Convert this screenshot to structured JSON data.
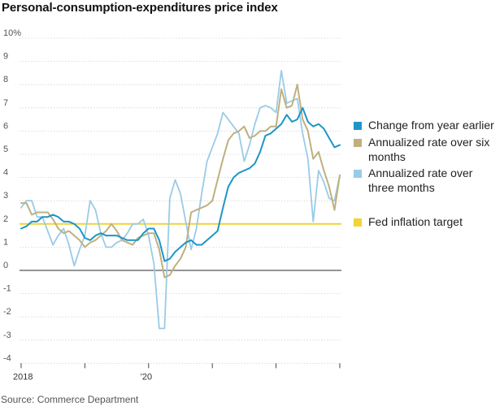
{
  "title": "Personal-consumption-expenditures price index",
  "source": "Source: Commerce Department",
  "chart_data": {
    "type": "line",
    "title": "Personal-consumption-expenditures price index",
    "xlabel": "",
    "ylabel": "",
    "ylim": [
      -4,
      10
    ],
    "xlim": [
      "2018-01",
      "2023-01"
    ],
    "y_ticks": [
      "10%",
      "9",
      "8",
      "7",
      "6",
      "5",
      "4",
      "3",
      "2",
      "1",
      "0",
      "-1",
      "-2",
      "-3",
      "-4"
    ],
    "y_tick_values": [
      10,
      9,
      8,
      7,
      6,
      5,
      4,
      3,
      2,
      1,
      0,
      -1,
      -2,
      -3,
      -4
    ],
    "x_tick_labels": [
      "2018",
      "'20"
    ],
    "x_tick_label_months": [
      "2018-01",
      "2020-01"
    ],
    "grid": true,
    "legend_position": "right",
    "reference_line": {
      "name": "Fed inflation target",
      "value": 2,
      "color": "#f2d338"
    },
    "series": [
      {
        "name": "Change from year earlier",
        "color": "#1e95c8",
        "x": [
          "2018-01",
          "2018-02",
          "2018-03",
          "2018-04",
          "2018-05",
          "2018-06",
          "2018-07",
          "2018-08",
          "2018-09",
          "2018-10",
          "2018-11",
          "2018-12",
          "2019-01",
          "2019-02",
          "2019-03",
          "2019-04",
          "2019-05",
          "2019-06",
          "2019-07",
          "2019-08",
          "2019-09",
          "2019-10",
          "2019-11",
          "2019-12",
          "2020-01",
          "2020-02",
          "2020-03",
          "2020-04",
          "2020-05",
          "2020-06",
          "2020-07",
          "2020-08",
          "2020-09",
          "2020-10",
          "2020-11",
          "2020-12",
          "2021-01",
          "2021-02",
          "2021-03",
          "2021-04",
          "2021-05",
          "2021-06",
          "2021-07",
          "2021-08",
          "2021-09",
          "2021-10",
          "2021-11",
          "2021-12",
          "2022-01",
          "2022-02",
          "2022-03",
          "2022-04",
          "2022-05",
          "2022-06",
          "2022-07",
          "2022-08",
          "2022-09",
          "2022-10",
          "2022-11",
          "2022-12",
          "2023-01"
        ],
        "values": [
          1.8,
          1.9,
          2.1,
          2.1,
          2.3,
          2.3,
          2.4,
          2.3,
          2.1,
          2.1,
          2.0,
          1.8,
          1.4,
          1.3,
          1.5,
          1.6,
          1.5,
          1.5,
          1.5,
          1.4,
          1.3,
          1.3,
          1.3,
          1.6,
          1.8,
          1.8,
          1.3,
          0.4,
          0.5,
          0.8,
          1.0,
          1.2,
          1.3,
          1.1,
          1.1,
          1.3,
          1.5,
          1.7,
          2.7,
          3.6,
          4.0,
          4.2,
          4.3,
          4.4,
          4.6,
          5.1,
          5.8,
          5.9,
          6.1,
          6.3,
          6.7,
          6.4,
          6.5,
          7.0,
          6.4,
          6.2,
          6.3,
          6.1,
          5.7,
          5.3,
          5.4
        ]
      },
      {
        "name": "Annualized rate over six months",
        "color": "#bfb07f",
        "x": [
          "2018-01",
          "2018-02",
          "2018-03",
          "2018-04",
          "2018-05",
          "2018-06",
          "2018-07",
          "2018-08",
          "2018-09",
          "2018-10",
          "2018-11",
          "2018-12",
          "2019-01",
          "2019-02",
          "2019-03",
          "2019-04",
          "2019-05",
          "2019-06",
          "2019-07",
          "2019-08",
          "2019-09",
          "2019-10",
          "2019-11",
          "2019-12",
          "2020-01",
          "2020-02",
          "2020-03",
          "2020-04",
          "2020-05",
          "2020-06",
          "2020-07",
          "2020-08",
          "2020-09",
          "2020-10",
          "2020-11",
          "2020-12",
          "2021-01",
          "2021-02",
          "2021-03",
          "2021-04",
          "2021-05",
          "2021-06",
          "2021-07",
          "2021-08",
          "2021-09",
          "2021-10",
          "2021-11",
          "2021-12",
          "2022-01",
          "2022-02",
          "2022-03",
          "2022-04",
          "2022-05",
          "2022-06",
          "2022-07",
          "2022-08",
          "2022-09",
          "2022-10",
          "2022-11",
          "2022-12",
          "2023-01"
        ],
        "values": [
          2.9,
          2.9,
          2.4,
          2.5,
          2.5,
          2.5,
          2.2,
          1.8,
          1.6,
          1.7,
          1.5,
          1.3,
          1.0,
          1.2,
          1.3,
          1.5,
          1.7,
          2.0,
          1.7,
          1.3,
          1.2,
          1.1,
          1.4,
          1.5,
          1.6,
          1.6,
          0.9,
          -0.3,
          -0.2,
          0.2,
          0.5,
          1.0,
          2.5,
          2.6,
          2.7,
          2.8,
          3.0,
          3.9,
          4.8,
          5.6,
          5.9,
          6.0,
          6.2,
          5.7,
          5.8,
          6.0,
          6.0,
          6.2,
          6.2,
          7.8,
          7.0,
          7.1,
          8.0,
          6.5,
          6.0,
          4.8,
          5.1,
          4.3,
          3.6,
          2.6,
          4.1
        ]
      },
      {
        "name": "Annualized rate over three months",
        "color": "#9acbe6",
        "x": [
          "2018-01",
          "2018-02",
          "2018-03",
          "2018-04",
          "2018-05",
          "2018-06",
          "2018-07",
          "2018-08",
          "2018-09",
          "2018-10",
          "2018-11",
          "2018-12",
          "2019-01",
          "2019-02",
          "2019-03",
          "2019-04",
          "2019-05",
          "2019-06",
          "2019-07",
          "2019-08",
          "2019-09",
          "2019-10",
          "2019-11",
          "2019-12",
          "2020-01",
          "2020-02",
          "2020-03",
          "2020-04",
          "2020-05",
          "2020-06",
          "2020-07",
          "2020-08",
          "2020-09",
          "2020-10",
          "2020-11",
          "2020-12",
          "2021-01",
          "2021-02",
          "2021-03",
          "2021-04",
          "2021-05",
          "2021-06",
          "2021-07",
          "2021-08",
          "2021-09",
          "2021-10",
          "2021-11",
          "2021-12",
          "2022-01",
          "2022-02",
          "2022-03",
          "2022-04",
          "2022-05",
          "2022-06",
          "2022-07",
          "2022-08",
          "2022-09",
          "2022-10",
          "2022-11",
          "2022-12",
          "2023-01"
        ],
        "values": [
          2.7,
          3.0,
          3.0,
          2.3,
          2.3,
          1.7,
          1.1,
          1.5,
          1.8,
          1.1,
          0.2,
          0.9,
          1.5,
          3.0,
          2.6,
          1.6,
          1.0,
          1.0,
          1.2,
          1.3,
          1.6,
          2.0,
          2.0,
          2.2,
          1.5,
          0.3,
          -2.5,
          -2.5,
          3.1,
          3.9,
          3.3,
          2.1,
          0.9,
          1.8,
          3.3,
          4.7,
          5.3,
          5.9,
          6.8,
          6.5,
          6.2,
          5.9,
          4.7,
          5.4,
          6.3,
          7.0,
          7.1,
          7.0,
          6.8,
          8.6,
          7.2,
          7.3,
          7.4,
          5.9,
          4.8,
          2.1,
          4.3,
          3.8,
          3.1,
          3.0,
          4.1
        ]
      }
    ]
  },
  "legend": {
    "items": [
      {
        "label": "Change from year earlier",
        "color": "#1e95c8"
      },
      {
        "label": "Annualized rate over six months",
        "color": "#bfb07f"
      },
      {
        "label": "Annualized rate over three months",
        "color": "#9acbe6"
      },
      {
        "label": "Fed inflation target",
        "color": "#f2d338"
      }
    ]
  }
}
